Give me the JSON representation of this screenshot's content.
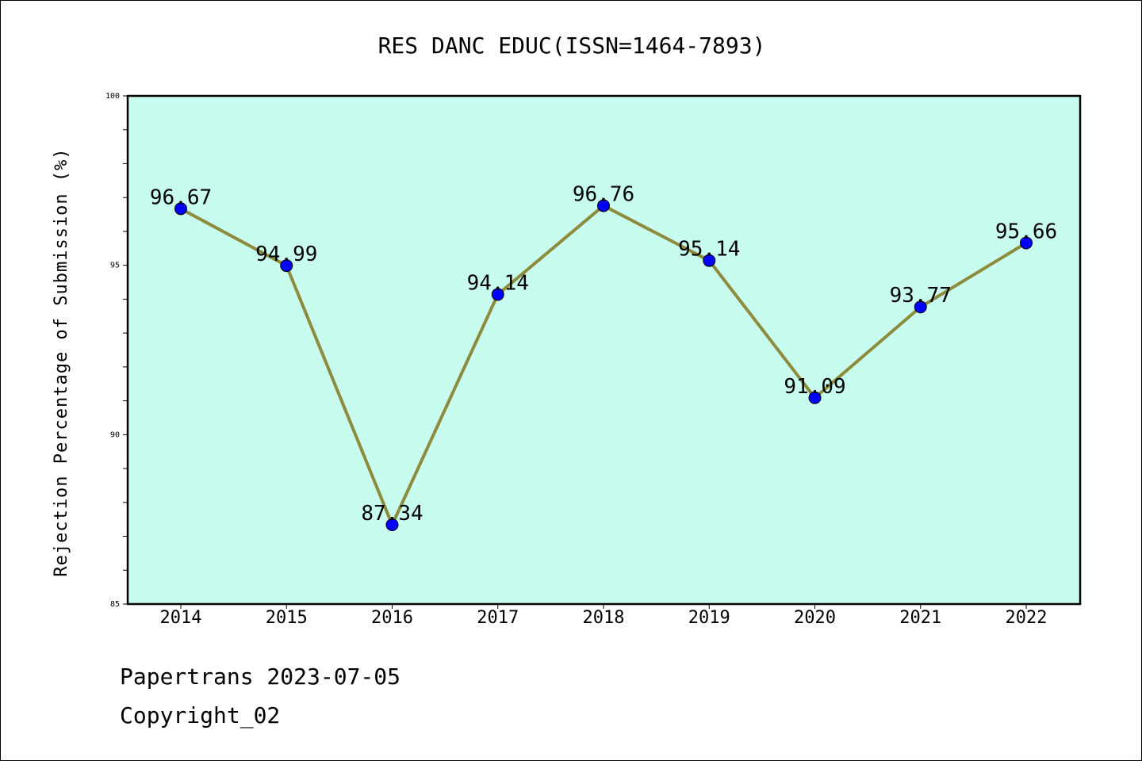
{
  "chart_data": {
    "type": "line",
    "title": "RES DANC EDUC(ISSN=1464-7893)",
    "xlabel": "",
    "ylabel": "Rejection Percentage of Submission (%)",
    "categories": [
      "2014",
      "2015",
      "2016",
      "2017",
      "2018",
      "2019",
      "2020",
      "2021",
      "2022"
    ],
    "series": [
      {
        "values": [
          96.67,
          94.99,
          87.34,
          94.14,
          96.76,
          95.14,
          91.09,
          93.77,
          95.66
        ]
      }
    ],
    "data_labels": [
      "96.67",
      "94.99",
      "87.34",
      "94.14",
      "96.76",
      "95.14",
      "91.09",
      "93.77",
      "95.66"
    ],
    "ylim": [
      85,
      100
    ],
    "yticks": [
      85,
      90,
      95,
      100
    ],
    "grid": false,
    "colors": {
      "plot_background": "#c8fcee",
      "line": "#8c8c3c",
      "marker": "#0000ff"
    }
  },
  "footer": {
    "date_text": "Papertrans 2023-07-05",
    "copyright_text": "Copyright_02"
  }
}
